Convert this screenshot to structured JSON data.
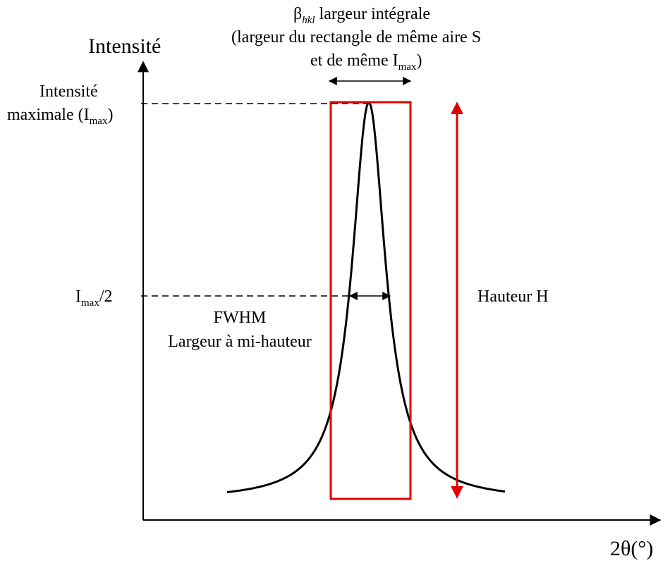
{
  "y_axis_label": "Intensité",
  "x_axis_label": "2θ(°)",
  "beta_label": {
    "symbol": "β",
    "subscript": "hkl",
    "text": "largeur intégrale"
  },
  "beta_description": {
    "line1": "(largeur du rectangle de même aire S",
    "line2": "et de même I",
    "line2_subscript": "max",
    "line2_end": ")"
  },
  "imax_label": {
    "line1": "Intensité",
    "line2": "maximale (I",
    "line2_subscript": "max",
    "line2_end": ")"
  },
  "half_label": {
    "symbol": "I",
    "subscript": "max",
    "text": "/2"
  },
  "fwhm_label": {
    "line1": "FWHM",
    "line2": "Largeur à mi-hauteur"
  },
  "height_label": "Hauteur H"
}
